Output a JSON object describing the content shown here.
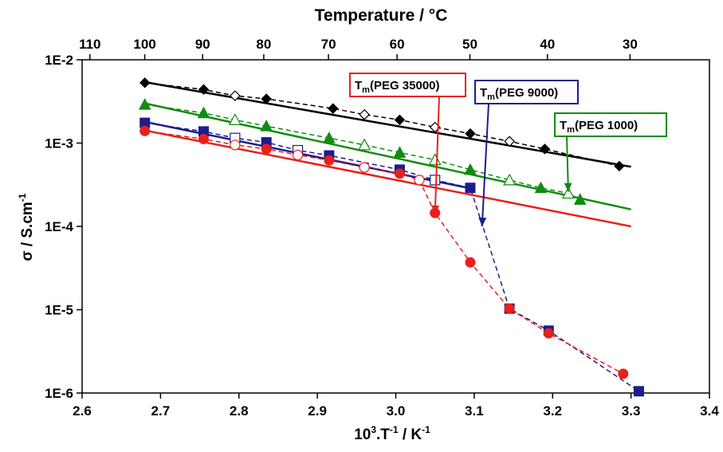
{
  "chart_data": {
    "type": "scatter",
    "xlabel": "10³.T⁻¹ / K⁻¹",
    "ylabel": "σ / S.cm⁻¹",
    "top_xlabel": "Temperature / °C",
    "xlim": [
      2.6,
      3.4
    ],
    "ylim": [
      1e-06,
      0.01
    ],
    "yscale": "log",
    "x_ticks": [
      2.6,
      2.7,
      2.8,
      2.9,
      3.0,
      3.1,
      3.2,
      3.3,
      3.4
    ],
    "x_tick_labels": [
      "2.6",
      "2.7",
      "2.8",
      "2.9",
      "3.0",
      "3.1",
      "3.2",
      "3.3",
      "3.4"
    ],
    "y_ticks": [
      1e-06,
      1e-05,
      0.0001,
      0.001,
      0.01
    ],
    "y_tick_labels": [
      "1E-6",
      "1E-5",
      "1E-4",
      "1E-3",
      "1E-2"
    ],
    "top_ticks": [
      110,
      100,
      90,
      80,
      70,
      60,
      50,
      40,
      30
    ],
    "top_tick_labels": [
      "110",
      "100",
      "90",
      "80",
      "70",
      "60",
      "50",
      "40",
      "30"
    ],
    "grid": false,
    "series": [
      {
        "color": "#000000",
        "marker": "diamond",
        "x": [
          2.68,
          2.755,
          2.795,
          2.835,
          2.92,
          2.96,
          3.005,
          3.05,
          3.095,
          3.145,
          3.19,
          3.285
        ],
        "y": [
          0.0053,
          0.0044,
          0.0037,
          0.0034,
          0.0026,
          0.0022,
          0.0019,
          0.00155,
          0.0013,
          0.00105,
          0.00085,
          0.00053
        ],
        "open": [
          false,
          false,
          true,
          false,
          false,
          true,
          false,
          true,
          false,
          true,
          false,
          false
        ],
        "fit": [
          [
            2.68,
            0.0054
          ],
          [
            3.3,
            0.00052
          ]
        ]
      },
      {
        "color": "#118c11",
        "marker": "triangle",
        "x": [
          2.68,
          2.755,
          2.795,
          2.835,
          2.915,
          2.96,
          3.005,
          3.05,
          3.095,
          3.145,
          3.185,
          3.22,
          3.235
        ],
        "y": [
          0.0029,
          0.0023,
          0.0019,
          0.0016,
          0.00115,
          0.00095,
          0.00077,
          0.00063,
          0.00048,
          0.00036,
          0.00029,
          0.00025,
          0.00021
        ],
        "open": [
          false,
          false,
          true,
          false,
          false,
          true,
          false,
          true,
          false,
          true,
          false,
          true,
          false
        ],
        "fit": [
          [
            2.68,
            0.003
          ],
          [
            3.3,
            0.00016
          ]
        ]
      },
      {
        "color": "#1c1c8c",
        "marker": "square",
        "x": [
          2.68,
          2.755,
          2.795,
          2.835,
          2.875,
          2.915,
          3.005,
          3.05,
          3.095,
          3.145,
          3.195,
          3.31
        ],
        "y": [
          0.00175,
          0.00138,
          0.00115,
          0.00102,
          0.00082,
          0.00071,
          0.00048,
          0.00036,
          0.00029,
          1.03e-05,
          5.6e-06,
          1.05e-06
        ],
        "open": [
          false,
          false,
          true,
          false,
          true,
          false,
          false,
          true,
          false,
          false,
          false,
          false
        ],
        "fit": [
          [
            2.68,
            0.0018
          ],
          [
            3.1,
            0.00028
          ]
        ]
      },
      {
        "color": "#e8201d",
        "marker": "circle",
        "x": [
          2.68,
          2.755,
          2.795,
          2.835,
          2.875,
          2.915,
          2.96,
          3.005,
          3.03,
          3.05,
          3.095,
          3.145,
          3.195,
          3.29
        ],
        "y": [
          0.0014,
          0.00112,
          0.00095,
          0.00085,
          0.00072,
          0.00062,
          0.00051,
          0.00043,
          0.00036,
          0.000145,
          3.7e-05,
          1.03e-05,
          5.2e-06,
          1.7e-06
        ],
        "open": [
          false,
          false,
          true,
          false,
          true,
          false,
          true,
          false,
          true,
          false,
          false,
          false,
          false,
          false
        ],
        "fit": [
          [
            2.68,
            0.00142
          ],
          [
            3.3,
            0.0001
          ]
        ]
      }
    ],
    "annotations": [
      {
        "label_main": "T",
        "label_sub": "m",
        "label_rest": "(PEG 35000)",
        "color": "#e8201d",
        "arrow_to": [
          3.05,
          0.00014
        ]
      },
      {
        "label_main": "T",
        "label_sub": "m",
        "label_rest": "(PEG 9000)",
        "color": "#1c1c8c",
        "arrow_to": [
          3.11,
          0.0001
        ]
      },
      {
        "label_main": "T",
        "label_sub": "m",
        "label_rest": "(PEG 1000)",
        "color": "#118c11",
        "arrow_to": [
          3.22,
          0.00026
        ]
      }
    ]
  }
}
